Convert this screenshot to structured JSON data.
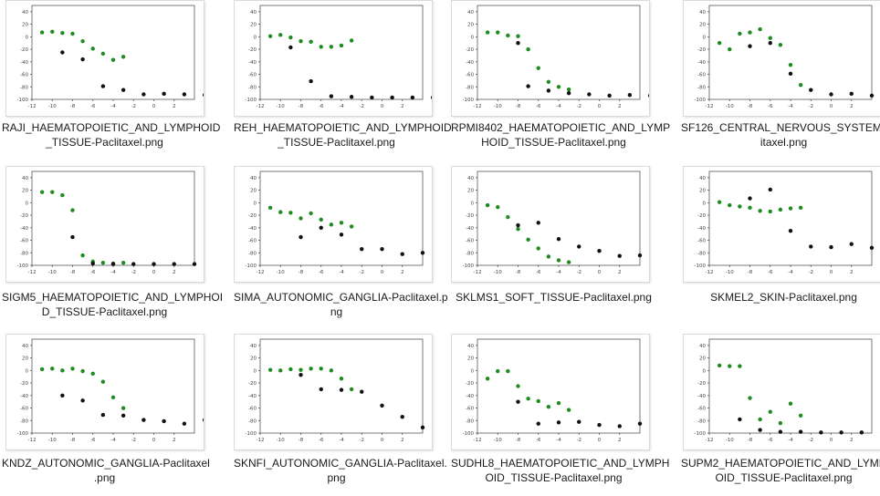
{
  "colors": {
    "green": "#1e8c1e",
    "black": "#111111"
  },
  "files": [
    {
      "caption": [
        "RAJI_HAEMATOPOIETIC_AND_LYMPHOID",
        "_TISSUE-Paclitaxel.png"
      ],
      "green": [
        [
          -11,
          7
        ],
        [
          -10,
          8
        ],
        [
          -9,
          6
        ],
        [
          -8,
          5
        ],
        [
          -7,
          -7
        ],
        [
          -6,
          -19
        ],
        [
          -5,
          -27
        ],
        [
          -4,
          -37
        ],
        [
          -3,
          -32
        ]
      ],
      "black": [
        [
          -9,
          -25
        ],
        [
          -7,
          -36
        ],
        [
          -5,
          -79
        ],
        [
          -3,
          -85
        ],
        [
          -1,
          -92
        ],
        [
          1,
          -91
        ],
        [
          3,
          -92
        ],
        [
          5,
          -93
        ]
      ]
    },
    {
      "caption": [
        "REH_HAEMATOPOIETIC_AND_LYMPHOID",
        "_TISSUE-Paclitaxel.png"
      ],
      "green": [
        [
          -11,
          1
        ],
        [
          -10,
          3
        ],
        [
          -9,
          -1
        ],
        [
          -8,
          -7
        ],
        [
          -7,
          -8
        ],
        [
          -6,
          -16
        ],
        [
          -5,
          -16
        ],
        [
          -4,
          -14
        ],
        [
          -3,
          -6
        ]
      ],
      "black": [
        [
          -9,
          -17
        ],
        [
          -7,
          -71
        ],
        [
          -5,
          -95
        ],
        [
          -3,
          -96
        ],
        [
          -1,
          -97
        ],
        [
          1,
          -97
        ],
        [
          3,
          -97
        ],
        [
          5,
          -97
        ]
      ]
    },
    {
      "caption": [
        "RPMI8402_HAEMATOPOIETIC_AND_LYMP",
        "HOID_TISSUE-Paclitaxel.png"
      ],
      "green": [
        [
          -11,
          7
        ],
        [
          -10,
          7
        ],
        [
          -9,
          2
        ],
        [
          -8,
          1
        ],
        [
          -7,
          -20
        ],
        [
          -6,
          -50
        ],
        [
          -5,
          -72
        ],
        [
          -4,
          -80
        ],
        [
          -3,
          -84
        ]
      ],
      "black": [
        [
          -8,
          -10
        ],
        [
          -7,
          -79
        ],
        [
          -5,
          -86
        ],
        [
          -3,
          -90
        ],
        [
          -1,
          -92
        ],
        [
          1,
          -94
        ],
        [
          3,
          -93
        ],
        [
          5,
          -94
        ]
      ]
    },
    {
      "caption": [
        "SF126_CENTRAL_NERVOUS_SYSTEM-Pacl",
        "itaxel.png"
      ],
      "green": [
        [
          -11,
          -10
        ],
        [
          -10,
          -20
        ],
        [
          -9,
          5
        ],
        [
          -8,
          7
        ],
        [
          -7,
          12
        ],
        [
          -6,
          -2
        ],
        [
          -5,
          -13
        ],
        [
          -4,
          -45
        ],
        [
          -3,
          -77
        ]
      ],
      "black": [
        [
          -8,
          -15
        ],
        [
          -6,
          -10
        ],
        [
          -4,
          -59
        ],
        [
          -2,
          -85
        ],
        [
          0,
          -92
        ],
        [
          2,
          -91
        ],
        [
          4,
          -94
        ]
      ]
    },
    {
      "caption": [
        "SIGM5_HAEMATOPOIETIC_AND_LYMPHOI",
        "D_TISSUE-Paclitaxel.png"
      ],
      "green": [
        [
          -11,
          17
        ],
        [
          -10,
          17
        ],
        [
          -9,
          12
        ],
        [
          -8,
          -12
        ],
        [
          -7,
          -84
        ],
        [
          -6,
          -94
        ],
        [
          -5,
          -96
        ],
        [
          -4,
          -97
        ],
        [
          -3,
          -96
        ]
      ],
      "black": [
        [
          -8,
          -55
        ],
        [
          -6,
          -97
        ],
        [
          -4,
          -98
        ],
        [
          -2,
          -98
        ],
        [
          0,
          -98
        ],
        [
          2,
          -98
        ],
        [
          4,
          -98
        ]
      ]
    },
    {
      "caption": [
        "SIMA_AUTONOMIC_GANGLIA-Paclitaxel.p",
        "ng"
      ],
      "green": [
        [
          -11,
          -8
        ],
        [
          -10,
          -15
        ],
        [
          -9,
          -16
        ],
        [
          -8,
          -25
        ],
        [
          -7,
          -17
        ],
        [
          -6,
          -27
        ],
        [
          -5,
          -35
        ],
        [
          -4,
          -32
        ],
        [
          -3,
          -38
        ]
      ],
      "black": [
        [
          -8,
          -55
        ],
        [
          -6,
          -40
        ],
        [
          -4,
          -51
        ],
        [
          -2,
          -74
        ],
        [
          0,
          -74
        ],
        [
          2,
          -82
        ],
        [
          4,
          -80
        ],
        [
          6,
          -81
        ]
      ]
    },
    {
      "caption": [
        "SKLMS1_SOFT_TISSUE-Paclitaxel.png"
      ],
      "green": [
        [
          -11,
          -4
        ],
        [
          -10,
          -7
        ],
        [
          -9,
          -23
        ],
        [
          -8,
          -42
        ],
        [
          -7,
          -59
        ],
        [
          -6,
          -73
        ],
        [
          -5,
          -86
        ],
        [
          -4,
          -92
        ],
        [
          -3,
          -95
        ]
      ],
      "black": [
        [
          -8,
          -36
        ],
        [
          -6,
          -32
        ],
        [
          -4,
          -58
        ],
        [
          -2,
          -70
        ],
        [
          0,
          -77
        ],
        [
          2,
          -85
        ],
        [
          4,
          -84
        ],
        [
          6,
          -89
        ]
      ]
    },
    {
      "caption": [
        "SKMEL2_SKIN-Paclitaxel.png"
      ],
      "green": [
        [
          -11,
          1
        ],
        [
          -10,
          -4
        ],
        [
          -9,
          -6
        ],
        [
          -8,
          -8
        ],
        [
          -7,
          -13
        ],
        [
          -6,
          -14
        ],
        [
          -5,
          -11
        ],
        [
          -4,
          -9
        ],
        [
          -3,
          -8
        ]
      ],
      "black": [
        [
          -8,
          7
        ],
        [
          -6,
          21
        ],
        [
          -4,
          -45
        ],
        [
          -2,
          -70
        ],
        [
          0,
          -71
        ],
        [
          2,
          -66
        ],
        [
          4,
          -72
        ],
        [
          6,
          -63
        ]
      ]
    },
    {
      "caption": [
        "KNDZ_AUTONOMIC_GANGLIA-Paclitaxel",
        ".png"
      ],
      "green": [
        [
          -11,
          2
        ],
        [
          -10,
          3
        ],
        [
          -9,
          0
        ],
        [
          -8,
          3
        ],
        [
          -7,
          -1
        ],
        [
          -6,
          -5
        ],
        [
          -5,
          -18
        ],
        [
          -4,
          -43
        ],
        [
          -3,
          -60
        ]
      ],
      "black": [
        [
          -9,
          -40
        ],
        [
          -7,
          -48
        ],
        [
          -5,
          -71
        ],
        [
          -3,
          -72
        ],
        [
          -1,
          -79
        ],
        [
          1,
          -81
        ],
        [
          3,
          -85
        ],
        [
          5,
          -79
        ]
      ]
    },
    {
      "caption": [
        "SKNFI_AUTONOMIC_GANGLIA-Paclitaxel.",
        "png"
      ],
      "green": [
        [
          -11,
          1
        ],
        [
          -10,
          0
        ],
        [
          -9,
          2
        ],
        [
          -8,
          1
        ],
        [
          -7,
          3
        ],
        [
          -6,
          3
        ],
        [
          -5,
          0
        ],
        [
          -4,
          -13
        ],
        [
          -3,
          -30
        ]
      ],
      "black": [
        [
          -8,
          -7
        ],
        [
          -6,
          -30
        ],
        [
          -4,
          -31
        ],
        [
          -2,
          -34
        ],
        [
          0,
          -56
        ],
        [
          2,
          -74
        ],
        [
          4,
          -91
        ]
      ]
    },
    {
      "caption": [
        "SUDHL8_HAEMATOPOIETIC_AND_LYMPH",
        "OID_TISSUE-Paclitaxel.png"
      ],
      "green": [
        [
          -11,
          -13
        ],
        [
          -10,
          -1
        ],
        [
          -9,
          -1
        ],
        [
          -8,
          -25
        ],
        [
          -7,
          -45
        ],
        [
          -6,
          -49
        ],
        [
          -5,
          -58
        ],
        [
          -4,
          -52
        ],
        [
          -3,
          -63
        ]
      ],
      "black": [
        [
          -8,
          -50
        ],
        [
          -6,
          -85
        ],
        [
          -4,
          -83
        ],
        [
          -2,
          -82
        ],
        [
          0,
          -87
        ],
        [
          2,
          -89
        ],
        [
          4,
          -85
        ],
        [
          6,
          -83
        ]
      ]
    },
    {
      "caption": [
        "SUPM2_HAEMATOPOIETIC_AND_LYMPH",
        "OID_TISSUE-Paclitaxel.png"
      ],
      "green": [
        [
          -11,
          8
        ],
        [
          -10,
          7
        ],
        [
          -9,
          7
        ],
        [
          -8,
          -44
        ],
        [
          -7,
          -78
        ],
        [
          -6,
          -66
        ],
        [
          -5,
          -84
        ],
        [
          -4,
          -53
        ],
        [
          -3,
          -72
        ]
      ],
      "black": [
        [
          -9,
          -78
        ],
        [
          -7,
          -95
        ],
        [
          -5,
          -98
        ],
        [
          -3,
          -98
        ],
        [
          -1,
          -99
        ],
        [
          1,
          -99
        ],
        [
          3,
          -99
        ],
        [
          5,
          -99
        ]
      ]
    }
  ]
}
